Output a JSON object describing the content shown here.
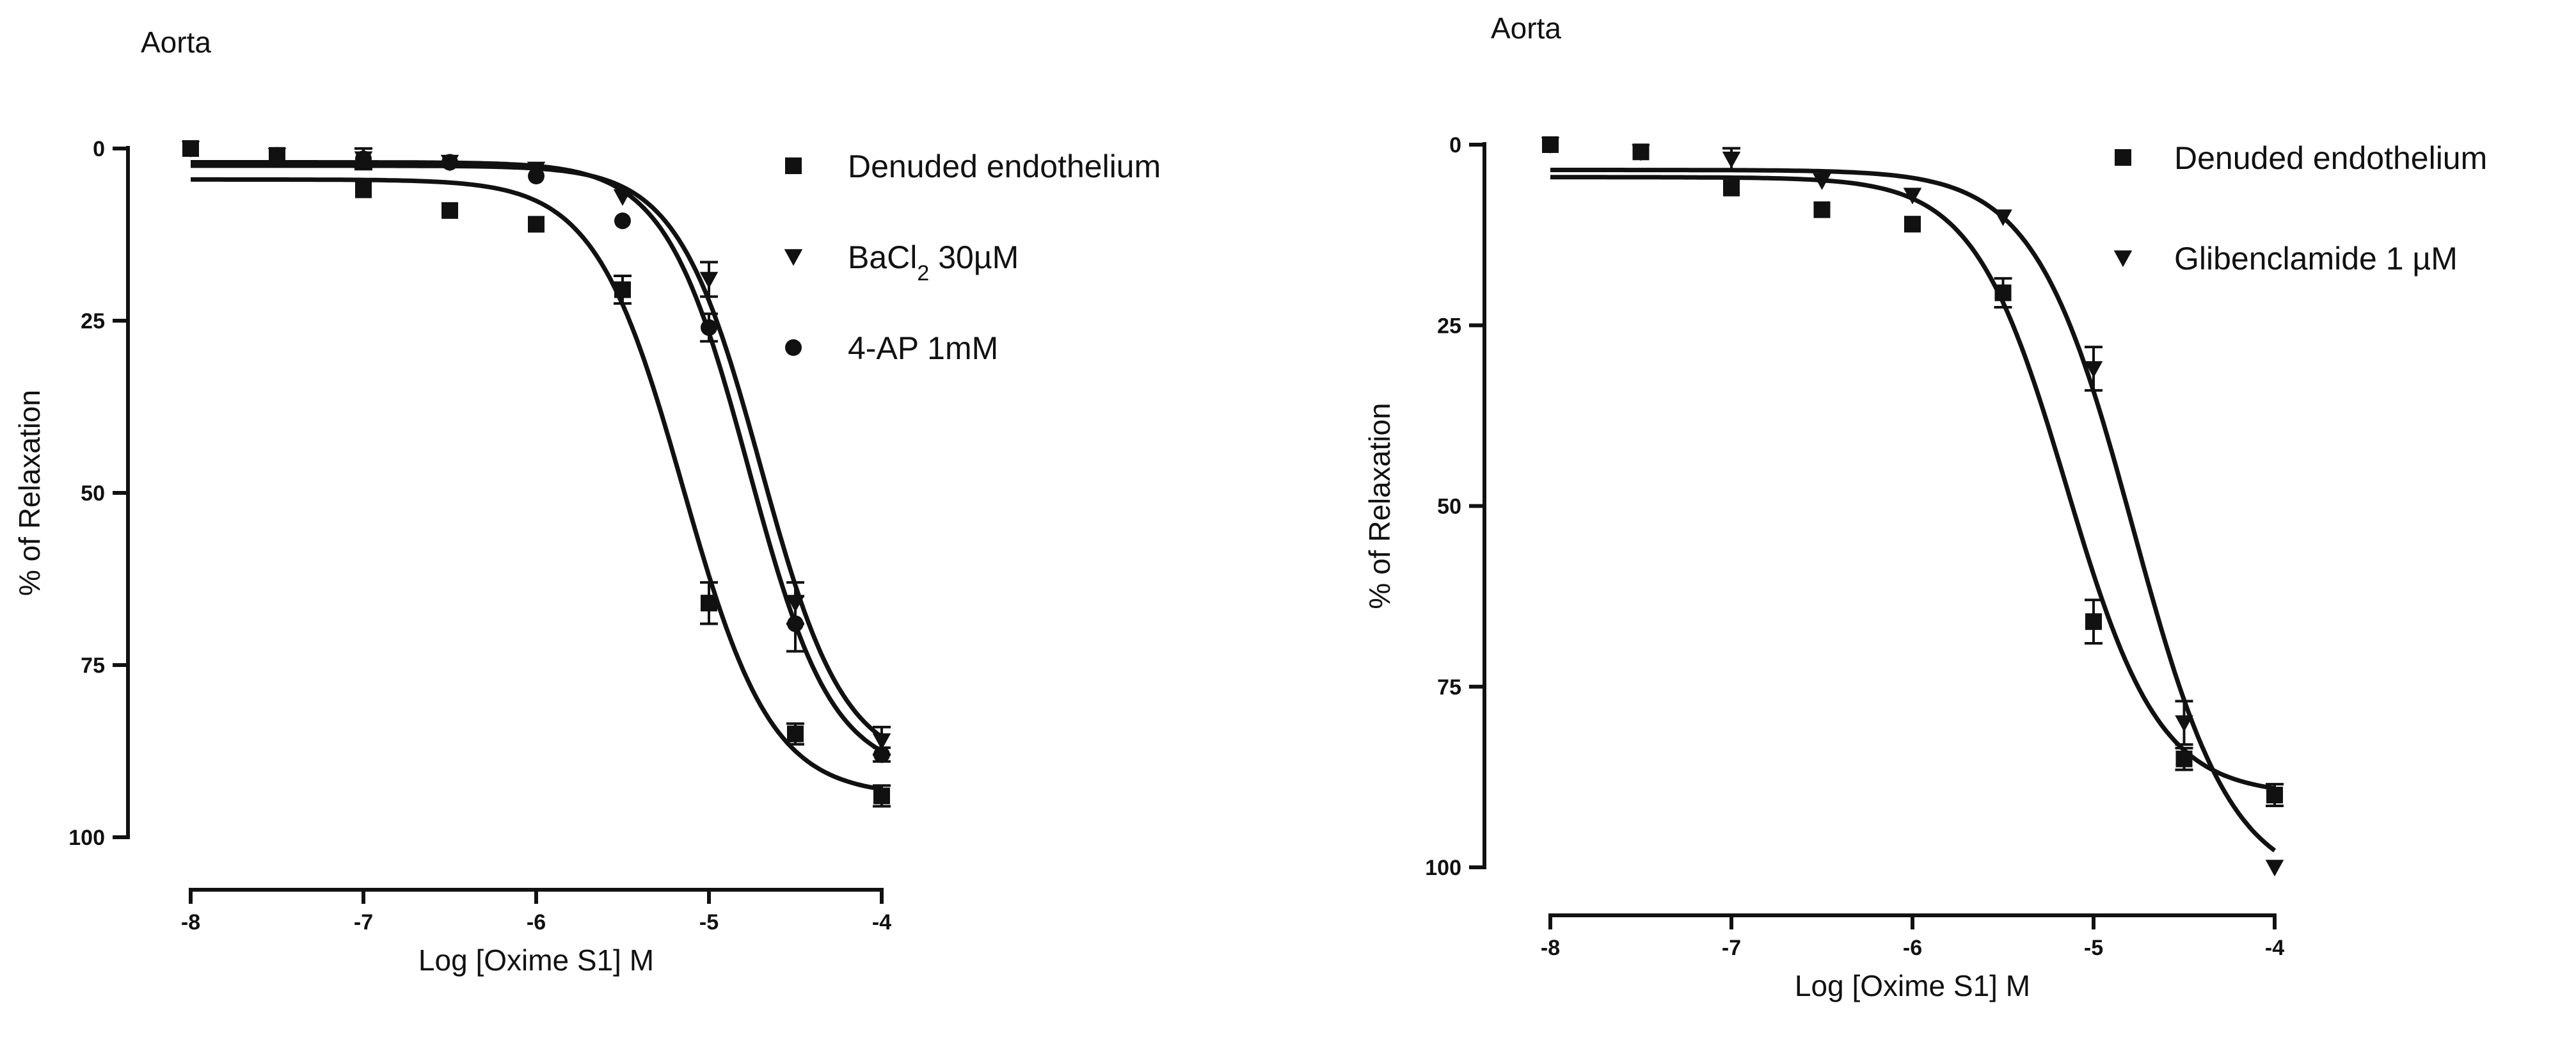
{
  "chart_data": [
    {
      "type": "line",
      "title": "Aorta",
      "xlabel": "Log [Oxime S1] M",
      "ylabel": "% of Relaxation",
      "xlim": [
        -8,
        -4
      ],
      "ylim": [
        0,
        100
      ],
      "y_inverted": true,
      "xticks": [
        -8,
        -7,
        -6,
        -5,
        -4
      ],
      "yticks": [
        0,
        25,
        50,
        75,
        100
      ],
      "legend_position": "top-right",
      "series": [
        {
          "name": "Denuded endothelium",
          "marker": "square",
          "x": [
            -8,
            -7.5,
            -7,
            -6.5,
            -6,
            -5.5,
            -5,
            -4.5,
            -4
          ],
          "y": [
            0,
            1,
            6,
            9,
            11,
            20.5,
            66,
            85,
            94
          ],
          "err": [
            0,
            0,
            0,
            0,
            0,
            2,
            3,
            1.5,
            1.5
          ],
          "fit": {
            "bottom": 4.5,
            "top": 94,
            "logEC50": -5.15,
            "hill": 1.7
          }
        },
        {
          "name": "BaCl₂ 30µM",
          "marker": "triangle-down",
          "x": [
            -8,
            -7.5,
            -7,
            -6.5,
            -6,
            -5.5,
            -5,
            -4.5,
            -4
          ],
          "y": [
            0,
            1,
            1.5,
            2,
            3,
            7,
            19,
            66,
            86
          ],
          "err": [
            0,
            0,
            1.5,
            0,
            0,
            0,
            2.5,
            3,
            2
          ],
          "fit": {
            "bottom": 2.5,
            "top": 90,
            "logEC50": -4.7,
            "hill": 1.8
          }
        },
        {
          "name": "4-AP 1mM",
          "marker": "circle",
          "x": [
            -8,
            -7.5,
            -7,
            -6.5,
            -6,
            -5.5,
            -5,
            -4.5,
            -4
          ],
          "y": [
            0,
            1,
            1.5,
            2,
            4,
            10.5,
            26,
            69,
            88
          ],
          "err": [
            0,
            0,
            0,
            0,
            0,
            0,
            2,
            4,
            1
          ],
          "fit": {
            "bottom": 2,
            "top": 91,
            "logEC50": -4.77,
            "hill": 1.8
          }
        }
      ]
    },
    {
      "type": "line",
      "title": "Aorta",
      "xlabel": "Log [Oxime S1] M",
      "ylabel": "% of Relaxation",
      "xlim": [
        -8,
        -4
      ],
      "ylim": [
        0,
        100
      ],
      "y_inverted": true,
      "xticks": [
        -8,
        -7,
        -6,
        -5,
        -4
      ],
      "yticks": [
        0,
        25,
        50,
        75,
        100
      ],
      "legend_position": "top-right",
      "series": [
        {
          "name": "Denuded endothelium",
          "marker": "square",
          "x": [
            -8,
            -7.5,
            -7,
            -6.5,
            -6,
            -5.5,
            -5,
            -4.5,
            -4
          ],
          "y": [
            0,
            1,
            6,
            9,
            11,
            20.5,
            66,
            85,
            90
          ],
          "err": [
            0,
            0,
            0,
            0,
            0,
            2,
            3,
            1.5,
            1.5
          ],
          "fit": {
            "bottom": 4.5,
            "top": 90,
            "logEC50": -5.15,
            "hill": 1.7
          }
        },
        {
          "name": "Glibenclamide 1 µM",
          "marker": "triangle-down",
          "x": [
            -8,
            -7.5,
            -7,
            -6.5,
            -6,
            -5.5,
            -5,
            -4.5,
            -4
          ],
          "y": [
            0,
            1,
            2,
            5,
            7,
            10,
            31,
            80,
            100
          ],
          "err": [
            0,
            0,
            1.5,
            0,
            0,
            0,
            3,
            3,
            0
          ],
          "fit": {
            "bottom": 3.5,
            "top": 103,
            "logEC50": -4.78,
            "hill": 1.6
          }
        }
      ]
    }
  ]
}
